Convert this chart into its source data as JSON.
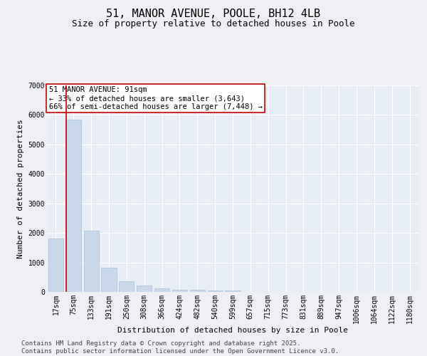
{
  "title": "51, MANOR AVENUE, POOLE, BH12 4LB",
  "subtitle": "Size of property relative to detached houses in Poole",
  "xlabel": "Distribution of detached houses by size in Poole",
  "ylabel": "Number of detached properties",
  "bar_color": "#c8d8ea",
  "bar_edge_color": "#a8c0d4",
  "bg_color": "#e8eef5",
  "grid_color": "#ffffff",
  "fig_color": "#eef0f4",
  "categories": [
    "17sqm",
    "75sqm",
    "133sqm",
    "191sqm",
    "250sqm",
    "308sqm",
    "366sqm",
    "424sqm",
    "482sqm",
    "540sqm",
    "599sqm",
    "657sqm",
    "715sqm",
    "773sqm",
    "831sqm",
    "889sqm",
    "947sqm",
    "1006sqm",
    "1064sqm",
    "1122sqm",
    "1180sqm"
  ],
  "values": [
    1800,
    5850,
    2080,
    820,
    360,
    215,
    115,
    80,
    80,
    60,
    50,
    0,
    0,
    0,
    0,
    0,
    0,
    0,
    0,
    0,
    0
  ],
  "vline_x": 0.575,
  "vline_color": "#cc0000",
  "annotation_title": "51 MANOR AVENUE: 91sqm",
  "annotation_line1": "← 33% of detached houses are smaller (3,643)",
  "annotation_line2": "66% of semi-detached houses are larger (7,448) →",
  "annotation_box_color": "#ffffff",
  "annotation_box_edge": "#cc0000",
  "ylim": [
    0,
    7000
  ],
  "yticks": [
    0,
    1000,
    2000,
    3000,
    4000,
    5000,
    6000,
    7000
  ],
  "footer1": "Contains HM Land Registry data © Crown copyright and database right 2025.",
  "footer2": "Contains public sector information licensed under the Open Government Licence v3.0.",
  "title_fontsize": 11,
  "subtitle_fontsize": 9,
  "axis_label_fontsize": 8,
  "tick_fontsize": 7,
  "footer_fontsize": 6.5,
  "annotation_fontsize": 7.5
}
